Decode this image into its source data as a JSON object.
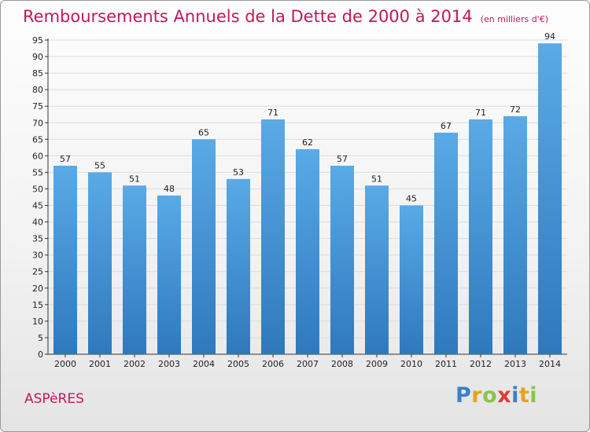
{
  "title": "Remboursements Annuels de la Dette de 2000 à 2014",
  "subtitle": "(en milliers d'€)",
  "commune": "ASPèRES",
  "logo": {
    "text": "Proxiti",
    "letters": [
      "P",
      "r",
      "o",
      "x",
      "i",
      "t",
      "i"
    ]
  },
  "colors": {
    "title": "#c2185b",
    "bar_top": "#5aaae6",
    "bar_bottom": "#2f78bd"
  },
  "chart_data": {
    "type": "bar",
    "categories": [
      "2000",
      "2001",
      "2002",
      "2003",
      "2004",
      "2005",
      "2006",
      "2007",
      "2008",
      "2009",
      "2010",
      "2011",
      "2012",
      "2013",
      "2014"
    ],
    "values": [
      57,
      55,
      51,
      48,
      65,
      53,
      71,
      62,
      57,
      51,
      45,
      67,
      71,
      72,
      94
    ],
    "ylim": [
      0,
      95
    ],
    "yticks": [
      0,
      5,
      10,
      15,
      20,
      25,
      30,
      35,
      40,
      45,
      50,
      55,
      60,
      65,
      70,
      75,
      80,
      85,
      90,
      95
    ],
    "grid": true,
    "title": "Remboursements Annuels de la Dette de 2000 à 2014",
    "xlabel": "",
    "ylabel": ""
  }
}
